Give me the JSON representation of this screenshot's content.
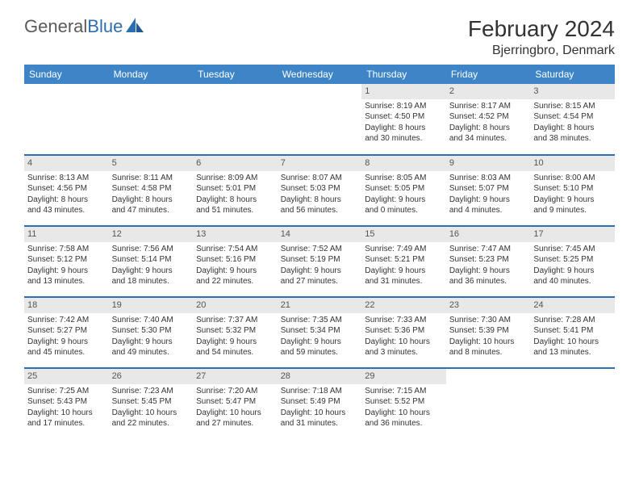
{
  "logo": {
    "part1": "General",
    "part2": "Blue"
  },
  "title": {
    "month": "February 2024",
    "location": "Bjerringbro, Denmark"
  },
  "days_header": [
    "Sunday",
    "Monday",
    "Tuesday",
    "Wednesday",
    "Thursday",
    "Friday",
    "Saturday"
  ],
  "colors": {
    "header_bg": "#3d85c6",
    "header_text": "#ffffff",
    "rule": "#2b6fb0",
    "daynum_bg": "#e8e8e8",
    "text": "#333333",
    "logo_gray": "#5a5a5a",
    "logo_blue": "#2b6fb0"
  },
  "weeks": [
    [
      null,
      null,
      null,
      null,
      {
        "n": "1",
        "sr": "Sunrise: 8:19 AM",
        "ss": "Sunset: 4:50 PM",
        "d1": "Daylight: 8 hours",
        "d2": "and 30 minutes."
      },
      {
        "n": "2",
        "sr": "Sunrise: 8:17 AM",
        "ss": "Sunset: 4:52 PM",
        "d1": "Daylight: 8 hours",
        "d2": "and 34 minutes."
      },
      {
        "n": "3",
        "sr": "Sunrise: 8:15 AM",
        "ss": "Sunset: 4:54 PM",
        "d1": "Daylight: 8 hours",
        "d2": "and 38 minutes."
      }
    ],
    [
      {
        "n": "4",
        "sr": "Sunrise: 8:13 AM",
        "ss": "Sunset: 4:56 PM",
        "d1": "Daylight: 8 hours",
        "d2": "and 43 minutes."
      },
      {
        "n": "5",
        "sr": "Sunrise: 8:11 AM",
        "ss": "Sunset: 4:58 PM",
        "d1": "Daylight: 8 hours",
        "d2": "and 47 minutes."
      },
      {
        "n": "6",
        "sr": "Sunrise: 8:09 AM",
        "ss": "Sunset: 5:01 PM",
        "d1": "Daylight: 8 hours",
        "d2": "and 51 minutes."
      },
      {
        "n": "7",
        "sr": "Sunrise: 8:07 AM",
        "ss": "Sunset: 5:03 PM",
        "d1": "Daylight: 8 hours",
        "d2": "and 56 minutes."
      },
      {
        "n": "8",
        "sr": "Sunrise: 8:05 AM",
        "ss": "Sunset: 5:05 PM",
        "d1": "Daylight: 9 hours",
        "d2": "and 0 minutes."
      },
      {
        "n": "9",
        "sr": "Sunrise: 8:03 AM",
        "ss": "Sunset: 5:07 PM",
        "d1": "Daylight: 9 hours",
        "d2": "and 4 minutes."
      },
      {
        "n": "10",
        "sr": "Sunrise: 8:00 AM",
        "ss": "Sunset: 5:10 PM",
        "d1": "Daylight: 9 hours",
        "d2": "and 9 minutes."
      }
    ],
    [
      {
        "n": "11",
        "sr": "Sunrise: 7:58 AM",
        "ss": "Sunset: 5:12 PM",
        "d1": "Daylight: 9 hours",
        "d2": "and 13 minutes."
      },
      {
        "n": "12",
        "sr": "Sunrise: 7:56 AM",
        "ss": "Sunset: 5:14 PM",
        "d1": "Daylight: 9 hours",
        "d2": "and 18 minutes."
      },
      {
        "n": "13",
        "sr": "Sunrise: 7:54 AM",
        "ss": "Sunset: 5:16 PM",
        "d1": "Daylight: 9 hours",
        "d2": "and 22 minutes."
      },
      {
        "n": "14",
        "sr": "Sunrise: 7:52 AM",
        "ss": "Sunset: 5:19 PM",
        "d1": "Daylight: 9 hours",
        "d2": "and 27 minutes."
      },
      {
        "n": "15",
        "sr": "Sunrise: 7:49 AM",
        "ss": "Sunset: 5:21 PM",
        "d1": "Daylight: 9 hours",
        "d2": "and 31 minutes."
      },
      {
        "n": "16",
        "sr": "Sunrise: 7:47 AM",
        "ss": "Sunset: 5:23 PM",
        "d1": "Daylight: 9 hours",
        "d2": "and 36 minutes."
      },
      {
        "n": "17",
        "sr": "Sunrise: 7:45 AM",
        "ss": "Sunset: 5:25 PM",
        "d1": "Daylight: 9 hours",
        "d2": "and 40 minutes."
      }
    ],
    [
      {
        "n": "18",
        "sr": "Sunrise: 7:42 AM",
        "ss": "Sunset: 5:27 PM",
        "d1": "Daylight: 9 hours",
        "d2": "and 45 minutes."
      },
      {
        "n": "19",
        "sr": "Sunrise: 7:40 AM",
        "ss": "Sunset: 5:30 PM",
        "d1": "Daylight: 9 hours",
        "d2": "and 49 minutes."
      },
      {
        "n": "20",
        "sr": "Sunrise: 7:37 AM",
        "ss": "Sunset: 5:32 PM",
        "d1": "Daylight: 9 hours",
        "d2": "and 54 minutes."
      },
      {
        "n": "21",
        "sr": "Sunrise: 7:35 AM",
        "ss": "Sunset: 5:34 PM",
        "d1": "Daylight: 9 hours",
        "d2": "and 59 minutes."
      },
      {
        "n": "22",
        "sr": "Sunrise: 7:33 AM",
        "ss": "Sunset: 5:36 PM",
        "d1": "Daylight: 10 hours",
        "d2": "and 3 minutes."
      },
      {
        "n": "23",
        "sr": "Sunrise: 7:30 AM",
        "ss": "Sunset: 5:39 PM",
        "d1": "Daylight: 10 hours",
        "d2": "and 8 minutes."
      },
      {
        "n": "24",
        "sr": "Sunrise: 7:28 AM",
        "ss": "Sunset: 5:41 PM",
        "d1": "Daylight: 10 hours",
        "d2": "and 13 minutes."
      }
    ],
    [
      {
        "n": "25",
        "sr": "Sunrise: 7:25 AM",
        "ss": "Sunset: 5:43 PM",
        "d1": "Daylight: 10 hours",
        "d2": "and 17 minutes."
      },
      {
        "n": "26",
        "sr": "Sunrise: 7:23 AM",
        "ss": "Sunset: 5:45 PM",
        "d1": "Daylight: 10 hours",
        "d2": "and 22 minutes."
      },
      {
        "n": "27",
        "sr": "Sunrise: 7:20 AM",
        "ss": "Sunset: 5:47 PM",
        "d1": "Daylight: 10 hours",
        "d2": "and 27 minutes."
      },
      {
        "n": "28",
        "sr": "Sunrise: 7:18 AM",
        "ss": "Sunset: 5:49 PM",
        "d1": "Daylight: 10 hours",
        "d2": "and 31 minutes."
      },
      {
        "n": "29",
        "sr": "Sunrise: 7:15 AM",
        "ss": "Sunset: 5:52 PM",
        "d1": "Daylight: 10 hours",
        "d2": "and 36 minutes."
      },
      null,
      null
    ]
  ]
}
